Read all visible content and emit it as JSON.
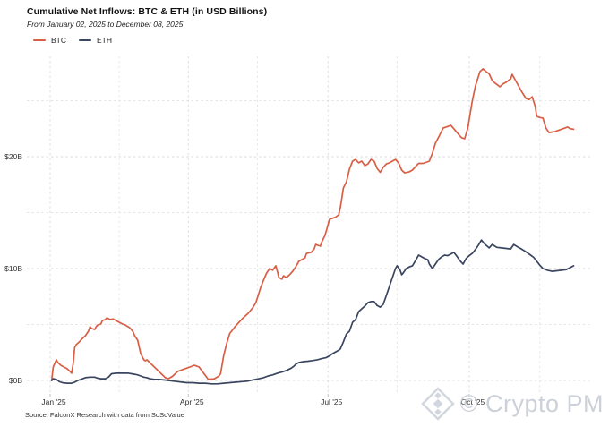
{
  "header": {
    "title": "Cumulative Net Inflows: BTC & ETH (in USD Billions)",
    "subtitle": "From January 02, 2025 to December 08, 2025"
  },
  "legend": {
    "items": [
      {
        "label": "BTC",
        "color": "#d85f45"
      },
      {
        "label": "ETH",
        "color": "#3a4560"
      }
    ]
  },
  "footer": {
    "source": "Source: FalconX Research with data from SoSoValue"
  },
  "watermark": {
    "logo": "diamond-logo-icon",
    "text": "© Crypto PM",
    "color": "#ccd1d9"
  },
  "colors": {
    "btc_line": "#d85f45",
    "eth_line": "#3a4560",
    "grid_major": "#d9d9d9",
    "grid_minor": "#e4e4e4",
    "axis_text": "#333333",
    "background": "#ffffff"
  },
  "chart_data": {
    "type": "line",
    "title": "Cumulative Net Inflows: BTC & ETH (in USD Billions)",
    "subtitle": "From January 02, 2025 to December 08, 2025",
    "unit": "USD Billions",
    "grid": "dashed",
    "legend_position": "top-left",
    "x_axis": {
      "label": "",
      "tick_labels": [
        "Jan '25",
        "Apr '25",
        "Jul '25",
        "Oct '25"
      ],
      "tick_days": [
        1,
        91,
        182,
        274
      ],
      "minor_tick_days": [
        46,
        136,
        227,
        320
      ],
      "range_days": [
        -14,
        357
      ]
    },
    "y_axis": {
      "label": "",
      "tick_labels": [
        "$0B",
        "$10B",
        "$20B"
      ],
      "tick_values": [
        0,
        10,
        20
      ],
      "minor_tick_values": [
        5,
        15,
        25
      ],
      "range": [
        -1.4,
        28.9
      ]
    },
    "series": [
      {
        "name": "BTC",
        "color": "#d85f45",
        "points_day_value": [
          [
            2,
            0
          ],
          [
            3,
            1.2
          ],
          [
            5,
            1.85
          ],
          [
            6,
            1.6
          ],
          [
            8,
            1.35
          ],
          [
            10,
            1.2
          ],
          [
            12,
            1.05
          ],
          [
            14,
            0.8
          ],
          [
            15,
            0.65
          ],
          [
            16,
            1.5
          ],
          [
            17,
            2.95
          ],
          [
            18,
            3.2
          ],
          [
            20,
            3.45
          ],
          [
            22,
            3.75
          ],
          [
            24,
            4
          ],
          [
            26,
            4.4
          ],
          [
            27,
            4.8
          ],
          [
            28,
            4.65
          ],
          [
            30,
            4.55
          ],
          [
            31,
            4.8
          ],
          [
            32,
            4.95
          ],
          [
            34,
            5.05
          ],
          [
            35,
            5.35
          ],
          [
            37,
            5.45
          ],
          [
            38,
            5.6
          ],
          [
            40,
            5.45
          ],
          [
            42,
            5.5
          ],
          [
            44,
            5.35
          ],
          [
            46,
            5.2
          ],
          [
            48,
            5.05
          ],
          [
            50,
            4.95
          ],
          [
            53,
            4.7
          ],
          [
            55,
            4.35
          ],
          [
            56,
            4
          ],
          [
            58,
            3.6
          ],
          [
            60,
            2.4
          ],
          [
            62,
            1.85
          ],
          [
            63,
            1.75
          ],
          [
            64,
            1.85
          ],
          [
            67,
            1.45
          ],
          [
            70,
            1.05
          ],
          [
            73,
            0.65
          ],
          [
            76,
            0.25
          ],
          [
            78,
            0.15
          ],
          [
            81,
            0.4
          ],
          [
            84,
            0.8
          ],
          [
            87,
            0.95
          ],
          [
            90,
            1.1
          ],
          [
            92,
            1.2
          ],
          [
            95,
            1.35
          ],
          [
            98,
            1.2
          ],
          [
            101,
            0.65
          ],
          [
            104,
            0.1
          ],
          [
            108,
            0.15
          ],
          [
            111,
            0.4
          ],
          [
            112,
            0.6
          ],
          [
            114,
            2.2
          ],
          [
            116,
            3.3
          ],
          [
            118,
            4.2
          ],
          [
            122,
            4.9
          ],
          [
            126,
            5.5
          ],
          [
            130,
            6
          ],
          [
            133,
            6.5
          ],
          [
            135,
            6.95
          ],
          [
            137,
            7.8
          ],
          [
            138,
            8.25
          ],
          [
            140,
            8.95
          ],
          [
            142,
            9.6
          ],
          [
            144,
            10
          ],
          [
            146,
            9.85
          ],
          [
            148,
            10.25
          ],
          [
            149,
            9.75
          ],
          [
            150,
            9.2
          ],
          [
            152,
            9.05
          ],
          [
            153,
            9.35
          ],
          [
            155,
            9.2
          ],
          [
            157,
            9.45
          ],
          [
            159,
            9.75
          ],
          [
            161,
            10.15
          ],
          [
            163,
            10.65
          ],
          [
            165,
            10.8
          ],
          [
            167,
            10.95
          ],
          [
            168,
            11.35
          ],
          [
            171,
            11.45
          ],
          [
            173,
            11.75
          ],
          [
            174,
            12.15
          ],
          [
            177,
            12
          ],
          [
            178,
            12.4
          ],
          [
            180,
            12.95
          ],
          [
            181,
            13.4
          ],
          [
            182,
            13.9
          ],
          [
            183,
            14.4
          ],
          [
            185,
            14.5
          ],
          [
            187,
            14.6
          ],
          [
            189,
            14.8
          ],
          [
            190,
            15.4
          ],
          [
            191,
            16.3
          ],
          [
            192,
            17.2
          ],
          [
            194,
            17.75
          ],
          [
            195,
            18.3
          ],
          [
            196,
            18.9
          ],
          [
            198,
            19.6
          ],
          [
            200,
            19.75
          ],
          [
            202,
            19.45
          ],
          [
            204,
            19.6
          ],
          [
            206,
            19.2
          ],
          [
            208,
            19.35
          ],
          [
            210,
            19.75
          ],
          [
            212,
            19.6
          ],
          [
            214,
            18.95
          ],
          [
            216,
            18.6
          ],
          [
            218,
            19.05
          ],
          [
            220,
            19.35
          ],
          [
            222,
            19.45
          ],
          [
            224,
            19.6
          ],
          [
            226,
            19.75
          ],
          [
            228,
            19.45
          ],
          [
            230,
            18.8
          ],
          [
            232,
            18.55
          ],
          [
            235,
            18.65
          ],
          [
            237,
            18.8
          ],
          [
            239,
            19.1
          ],
          [
            241,
            19.4
          ],
          [
            244,
            19.4
          ],
          [
            248,
            19.6
          ],
          [
            250,
            20.3
          ],
          [
            252,
            21.2
          ],
          [
            255,
            22
          ],
          [
            257,
            22.55
          ],
          [
            260,
            22.7
          ],
          [
            262,
            22.8
          ],
          [
            264,
            22.5
          ],
          [
            267,
            22
          ],
          [
            269,
            21.7
          ],
          [
            271,
            21.6
          ],
          [
            273,
            22.5
          ],
          [
            276,
            24.95
          ],
          [
            278,
            26.3
          ],
          [
            281,
            27.6
          ],
          [
            283,
            27.85
          ],
          [
            285,
            27.6
          ],
          [
            287,
            27.4
          ],
          [
            289,
            26.8
          ],
          [
            291,
            26.55
          ],
          [
            294,
            26.25
          ],
          [
            296,
            26.5
          ],
          [
            298,
            26.65
          ],
          [
            301,
            26.95
          ],
          [
            302,
            27.35
          ],
          [
            305,
            26.6
          ],
          [
            308,
            25.85
          ],
          [
            311,
            25.2
          ],
          [
            313,
            25.1
          ],
          [
            315,
            25.35
          ],
          [
            317,
            24.5
          ],
          [
            318,
            23.6
          ],
          [
            320,
            23.5
          ],
          [
            322,
            23.45
          ],
          [
            324,
            22.55
          ],
          [
            326,
            22.15
          ],
          [
            328,
            22.2
          ],
          [
            330,
            22.25
          ],
          [
            334,
            22.45
          ],
          [
            338,
            22.65
          ],
          [
            340,
            22.5
          ],
          [
            342,
            22.45
          ]
        ]
      },
      {
        "name": "ETH",
        "color": "#3a4560",
        "points_day_value": [
          [
            2,
            0
          ],
          [
            3,
            0.15
          ],
          [
            5,
            0.1
          ],
          [
            7,
            -0.1
          ],
          [
            9,
            -0.2
          ],
          [
            12,
            -0.25
          ],
          [
            15,
            -0.25
          ],
          [
            17,
            -0.15
          ],
          [
            19,
            0
          ],
          [
            21,
            0.1
          ],
          [
            24,
            0.25
          ],
          [
            27,
            0.3
          ],
          [
            30,
            0.3
          ],
          [
            32,
            0.2
          ],
          [
            34,
            0.15
          ],
          [
            37,
            0.15
          ],
          [
            39,
            0.3
          ],
          [
            41,
            0.6
          ],
          [
            44,
            0.65
          ],
          [
            48,
            0.65
          ],
          [
            52,
            0.65
          ],
          [
            54,
            0.6
          ],
          [
            56,
            0.55
          ],
          [
            58,
            0.5
          ],
          [
            60,
            0.4
          ],
          [
            62,
            0.3
          ],
          [
            64,
            0.25
          ],
          [
            66,
            0.15
          ],
          [
            69,
            0.1
          ],
          [
            72,
            0.1
          ],
          [
            75,
            0.05
          ],
          [
            78,
            0
          ],
          [
            81,
            -0.05
          ],
          [
            84,
            -0.1
          ],
          [
            87,
            -0.15
          ],
          [
            90,
            -0.2
          ],
          [
            94,
            -0.2
          ],
          [
            98,
            -0.25
          ],
          [
            102,
            -0.25
          ],
          [
            106,
            -0.3
          ],
          [
            110,
            -0.3
          ],
          [
            114,
            -0.25
          ],
          [
            118,
            -0.2
          ],
          [
            122,
            -0.15
          ],
          [
            126,
            -0.1
          ],
          [
            130,
            -0.05
          ],
          [
            133,
            0.05
          ],
          [
            137,
            0.15
          ],
          [
            140,
            0.25
          ],
          [
            143,
            0.4
          ],
          [
            146,
            0.5
          ],
          [
            149,
            0.65
          ],
          [
            152,
            0.75
          ],
          [
            155,
            0.9
          ],
          [
            158,
            1.1
          ],
          [
            160,
            1.3
          ],
          [
            161,
            1.45
          ],
          [
            163,
            1.6
          ],
          [
            166,
            1.68
          ],
          [
            169,
            1.72
          ],
          [
            172,
            1.78
          ],
          [
            175,
            1.85
          ],
          [
            178,
            1.95
          ],
          [
            181,
            2.05
          ],
          [
            183,
            2.2
          ],
          [
            185,
            2.4
          ],
          [
            187,
            2.55
          ],
          [
            189,
            2.7
          ],
          [
            190,
            2.8
          ],
          [
            192,
            3.45
          ],
          [
            194,
            4.15
          ],
          [
            196,
            4.4
          ],
          [
            198,
            5.2
          ],
          [
            200,
            5.45
          ],
          [
            202,
            6.15
          ],
          [
            204,
            6.4
          ],
          [
            206,
            6.65
          ],
          [
            208,
            6.95
          ],
          [
            210,
            7.05
          ],
          [
            212,
            7.05
          ],
          [
            214,
            6.7
          ],
          [
            216,
            6.55
          ],
          [
            218,
            6.8
          ],
          [
            220,
            7.6
          ],
          [
            222,
            8.4
          ],
          [
            224,
            9.2
          ],
          [
            226,
            10
          ],
          [
            227,
            10.25
          ],
          [
            229,
            9.85
          ],
          [
            230,
            9.45
          ],
          [
            231,
            9.6
          ],
          [
            233,
            10
          ],
          [
            235,
            10.15
          ],
          [
            237,
            10.25
          ],
          [
            239,
            10.7
          ],
          [
            241,
            11.2
          ],
          [
            243,
            11.05
          ],
          [
            245,
            10.9
          ],
          [
            247,
            10.8
          ],
          [
            248,
            10.4
          ],
          [
            250,
            10
          ],
          [
            252,
            10.4
          ],
          [
            254,
            10.8
          ],
          [
            256,
            11.05
          ],
          [
            258,
            11.2
          ],
          [
            260,
            11.15
          ],
          [
            262,
            11.3
          ],
          [
            264,
            11.45
          ],
          [
            266,
            11.1
          ],
          [
            268,
            10.7
          ],
          [
            270,
            10.4
          ],
          [
            272,
            10.9
          ],
          [
            274,
            11.15
          ],
          [
            276,
            11.35
          ],
          [
            278,
            11.7
          ],
          [
            280,
            12.1
          ],
          [
            282,
            12.55
          ],
          [
            284,
            12.2
          ],
          [
            287,
            11.85
          ],
          [
            289,
            12.15
          ],
          [
            292,
            11.9
          ],
          [
            295,
            11.85
          ],
          [
            298,
            11.8
          ],
          [
            301,
            11.75
          ],
          [
            303,
            12.15
          ],
          [
            306,
            11.9
          ],
          [
            308,
            11.75
          ],
          [
            311,
            11.5
          ],
          [
            314,
            11.2
          ],
          [
            316,
            11
          ],
          [
            318,
            10.65
          ],
          [
            320,
            10.3
          ],
          [
            322,
            10
          ],
          [
            325,
            9.85
          ],
          [
            328,
            9.75
          ],
          [
            331,
            9.8
          ],
          [
            334,
            9.85
          ],
          [
            337,
            9.9
          ],
          [
            340,
            10.1
          ],
          [
            342,
            10.25
          ]
        ]
      }
    ]
  }
}
